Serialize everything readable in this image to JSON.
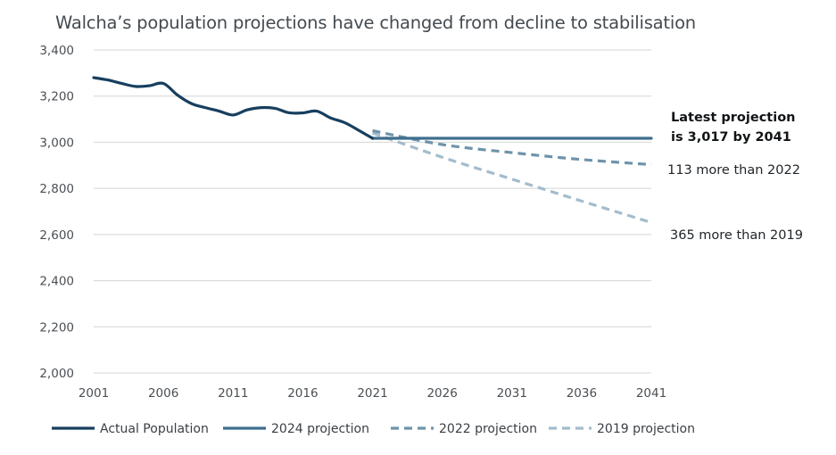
{
  "chart_data": {
    "type": "line",
    "title": "Walcha’s population projections have changed from decline to stabilisation",
    "xlabel": "",
    "ylabel": "",
    "xlim": [
      2001,
      2041
    ],
    "ylim": [
      2000,
      3400
    ],
    "x_ticks": [
      "2001",
      "2006",
      "2011",
      "2016",
      "2021",
      "2026",
      "2031",
      "2036",
      "2041"
    ],
    "y_ticks": [
      "2,000",
      "2,200",
      "2,400",
      "2,600",
      "2,800",
      "3,000",
      "3,200",
      "3,400"
    ],
    "grid": true,
    "legend_position": "bottom",
    "series": [
      {
        "name": "Actual Population",
        "color": "#173f5f",
        "style": "solid",
        "x": [
          2001,
          2002,
          2003,
          2004,
          2005,
          2006,
          2007,
          2008,
          2009,
          2010,
          2011,
          2012,
          2013,
          2014,
          2015,
          2016,
          2017,
          2018,
          2019,
          2020,
          2021
        ],
        "values": [
          3280,
          3270,
          3255,
          3242,
          3245,
          3255,
          3205,
          3168,
          3150,
          3135,
          3118,
          3140,
          3150,
          3147,
          3128,
          3127,
          3135,
          3105,
          3085,
          3052,
          3017
        ]
      },
      {
        "name": "2024 projection",
        "color": "#3e6e8e",
        "style": "solid",
        "x": [
          2021,
          2041
        ],
        "values": [
          3017,
          3017
        ]
      },
      {
        "name": "2022 projection",
        "color": "#6f93ab",
        "style": "dashed",
        "x": [
          2021,
          2026,
          2031,
          2036,
          2041
        ],
        "values": [
          3050,
          2990,
          2955,
          2925,
          2903
        ]
      },
      {
        "name": "2019 projection",
        "color": "#a3bccd",
        "style": "dashed",
        "x": [
          2021,
          2026,
          2031,
          2036,
          2041
        ],
        "values": [
          3040,
          2935,
          2840,
          2745,
          2652
        ]
      }
    ],
    "annotations": {
      "latest_line1": "Latest projection",
      "latest_line2": "is 3,017 by 2041",
      "vs2022": "113 more than 2022",
      "vs2019": "365 more than 2019"
    }
  }
}
